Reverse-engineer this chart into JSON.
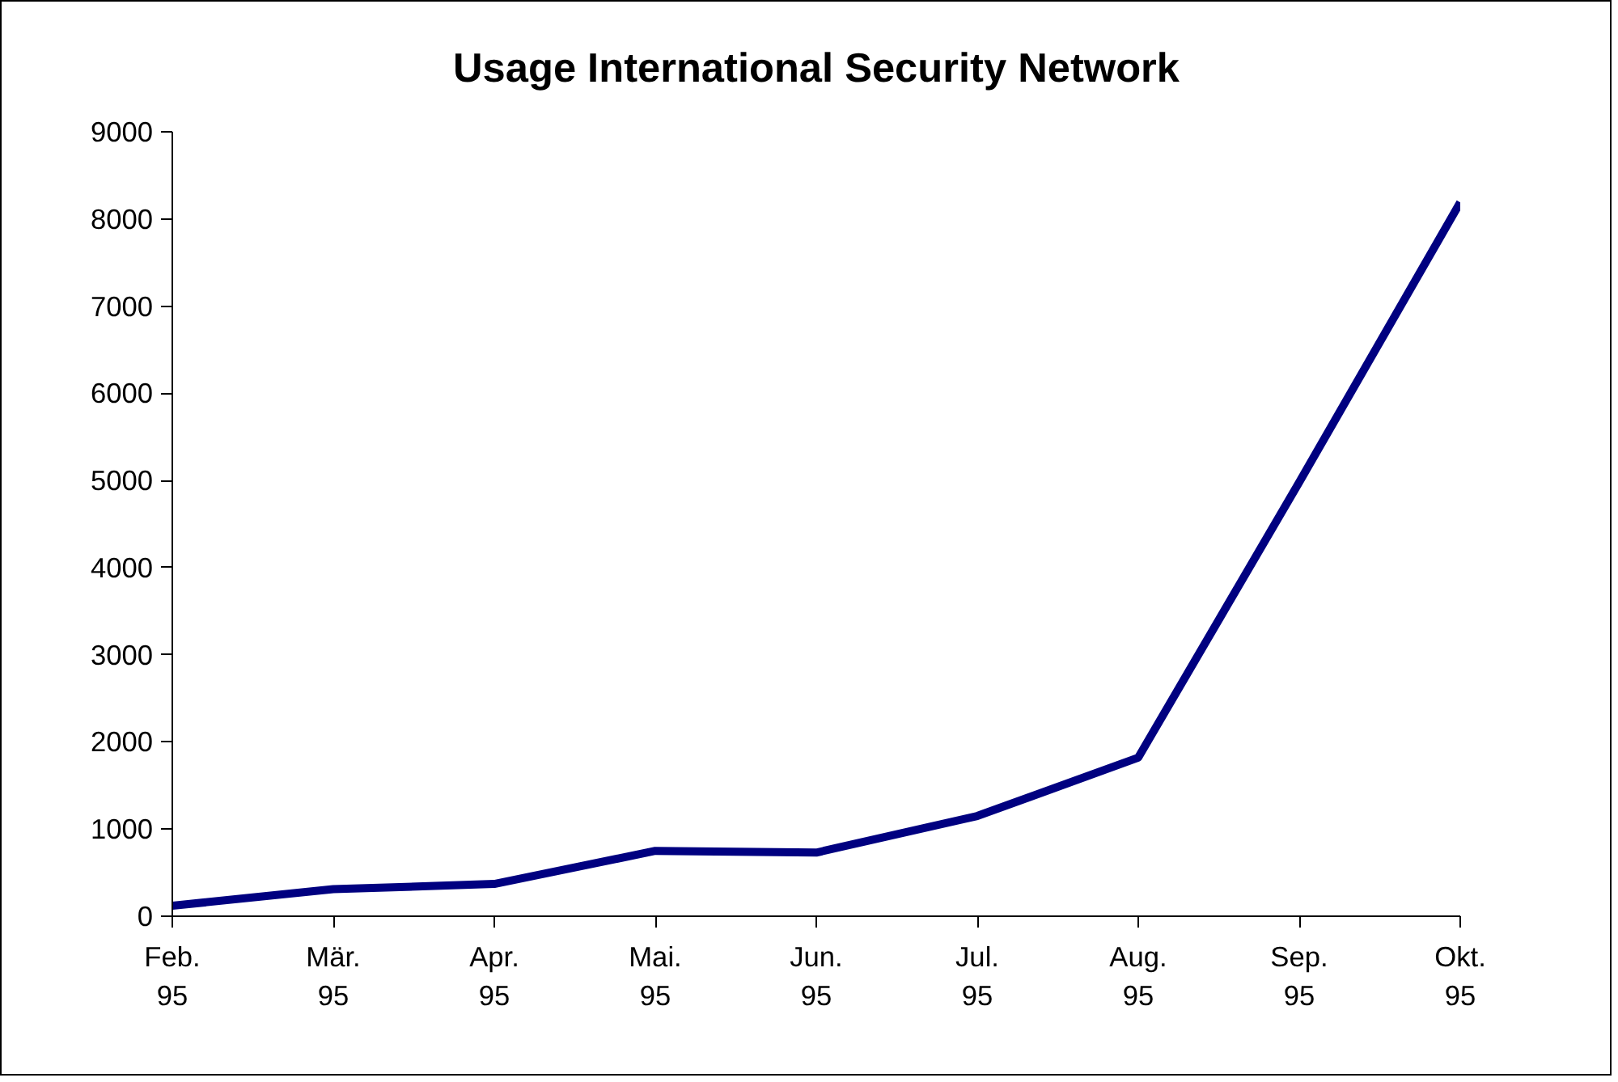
{
  "chart_data": {
    "type": "line",
    "title": "Usage International Security Network",
    "categories": [
      "Feb.\n95",
      "Mär.\n95",
      "Apr.\n95",
      "Mai.\n95",
      "Jun.\n95",
      "Jul.\n95",
      "Aug.\n95",
      "Sep.\n95",
      "Okt.\n95"
    ],
    "series": [
      {
        "color": "#000080",
        "values": [
          120,
          310,
          370,
          750,
          730,
          1150,
          1820,
          4980,
          8190
        ]
      }
    ],
    "ylim": [
      0,
      9000
    ],
    "yticks": [
      0,
      1000,
      2000,
      3000,
      4000,
      5000,
      6000,
      7000,
      8000,
      9000
    ],
    "marker": "none",
    "line_style": "solid"
  }
}
